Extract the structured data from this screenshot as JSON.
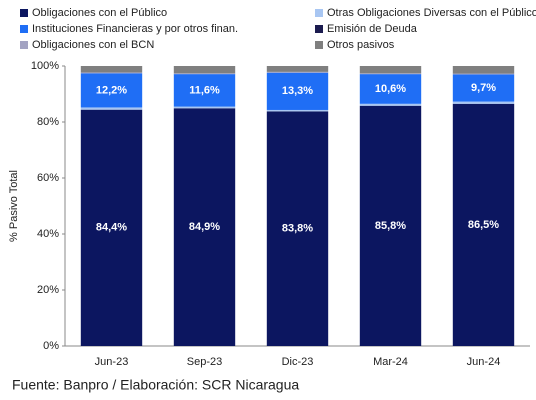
{
  "chart_data": {
    "type": "stacked_bar",
    "categories": [
      "Jun-23",
      "Sep-23",
      "Dic-23",
      "Mar-24",
      "Jun-24"
    ],
    "series": [
      {
        "name": "Obligaciones con el Público",
        "color": "#0c1660",
        "values": [
          84.4,
          84.9,
          83.8,
          85.8,
          86.5
        ],
        "value_labels": [
          "84,4%",
          "84,9%",
          "83,8%",
          "85,8%",
          "86,5%"
        ]
      },
      {
        "name": "Otras Obligaciones Diversas con el Público",
        "color": "#a8c6f2",
        "values": [
          0.8,
          0.6,
          0.5,
          0.7,
          0.8
        ]
      },
      {
        "name": "Instituciones Financieras y por otros finan.",
        "color": "#1f6ef5",
        "values": [
          12.2,
          11.6,
          13.3,
          10.6,
          9.7
        ],
        "value_labels": [
          "12,2%",
          "11,6%",
          "13,3%",
          "10,6%",
          "9,7%"
        ]
      },
      {
        "name": "Emisión de Deuda",
        "color": "#1b1b4f",
        "values": [
          0,
          0,
          0,
          0,
          0
        ]
      },
      {
        "name": "Obligaciones con el BCN",
        "color": "#a3a3c2",
        "values": [
          0.3,
          0.3,
          0.3,
          0.3,
          0.3
        ]
      },
      {
        "name": "Otros pasivos",
        "color": "#7f7f7f",
        "values": [
          2.3,
          2.6,
          2.1,
          2.6,
          2.7
        ]
      }
    ],
    "ylabel": "% Pasivo Total",
    "ylim": [
      0,
      100
    ],
    "yticks": [
      {
        "value": 0,
        "label": "0%"
      },
      {
        "value": 20,
        "label": "20%"
      },
      {
        "value": 40,
        "label": "40%"
      },
      {
        "value": 60,
        "label": "60%"
      },
      {
        "value": 80,
        "label": "80%"
      },
      {
        "value": 100,
        "label": "100%"
      }
    ],
    "source": "Fuente: Banpro / Elaboración: SCR Nicaragua"
  }
}
